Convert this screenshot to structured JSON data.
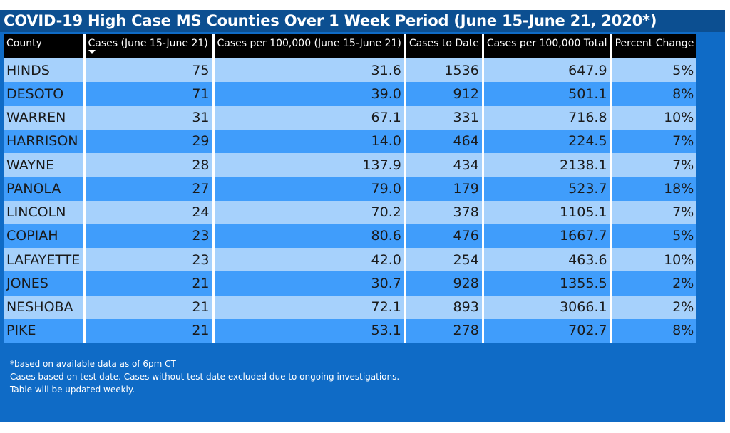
{
  "title": "COVID-19 High Case MS Counties Over 1 Week Period (June 15-June 21, 2020*)",
  "colors": {
    "panel_bg": "#0f6bc6",
    "title_bar_bg": "#0c4f91",
    "header_bg": "#000000",
    "row_light": "#a6d1fc",
    "row_dark": "#409dfb",
    "text_white": "#ffffff"
  },
  "sort": {
    "column": "Cases (June 15-June 21)",
    "direction": "descending",
    "icon": "sort-desc-icon"
  },
  "chart_data": {
    "type": "table",
    "title": "COVID-19 High Case MS Counties Over 1 Week Period (June 15-June 21, 2020*)",
    "columns": [
      "County",
      "Cases (June 15-June 21)",
      "Cases per 100,000 (June 15-June 21)",
      "Cases to Date",
      "Cases per 100,000 Total",
      "Percent Change"
    ],
    "rows": [
      [
        "HINDS",
        "75",
        "31.6",
        "1536",
        "647.9",
        "5%"
      ],
      [
        "DESOTO",
        "71",
        "39.0",
        "912",
        "501.1",
        "8%"
      ],
      [
        "WARREN",
        "31",
        "67.1",
        "331",
        "716.8",
        "10%"
      ],
      [
        "HARRISON",
        "29",
        "14.0",
        "464",
        "224.5",
        "7%"
      ],
      [
        "WAYNE",
        "28",
        "137.9",
        "434",
        "2138.1",
        "7%"
      ],
      [
        "PANOLA",
        "27",
        "79.0",
        "179",
        "523.7",
        "18%"
      ],
      [
        "LINCOLN",
        "24",
        "70.2",
        "378",
        "1105.1",
        "7%"
      ],
      [
        "COPIAH",
        "23",
        "80.6",
        "476",
        "1667.7",
        "5%"
      ],
      [
        "LAFAYETTE",
        "23",
        "42.0",
        "254",
        "463.6",
        "10%"
      ],
      [
        "JONES",
        "21",
        "30.7",
        "928",
        "1355.5",
        "2%"
      ],
      [
        "NESHOBA",
        "21",
        "72.1",
        "893",
        "3066.1",
        "2%"
      ],
      [
        "PIKE",
        "21",
        "53.1",
        "278",
        "702.7",
        "8%"
      ]
    ]
  },
  "notes": [
    "*based on available data as of 6pm CT",
    "Cases based on test date. Cases without test date excluded due to ongoing investigations.",
    "Table will be updated weekly."
  ]
}
